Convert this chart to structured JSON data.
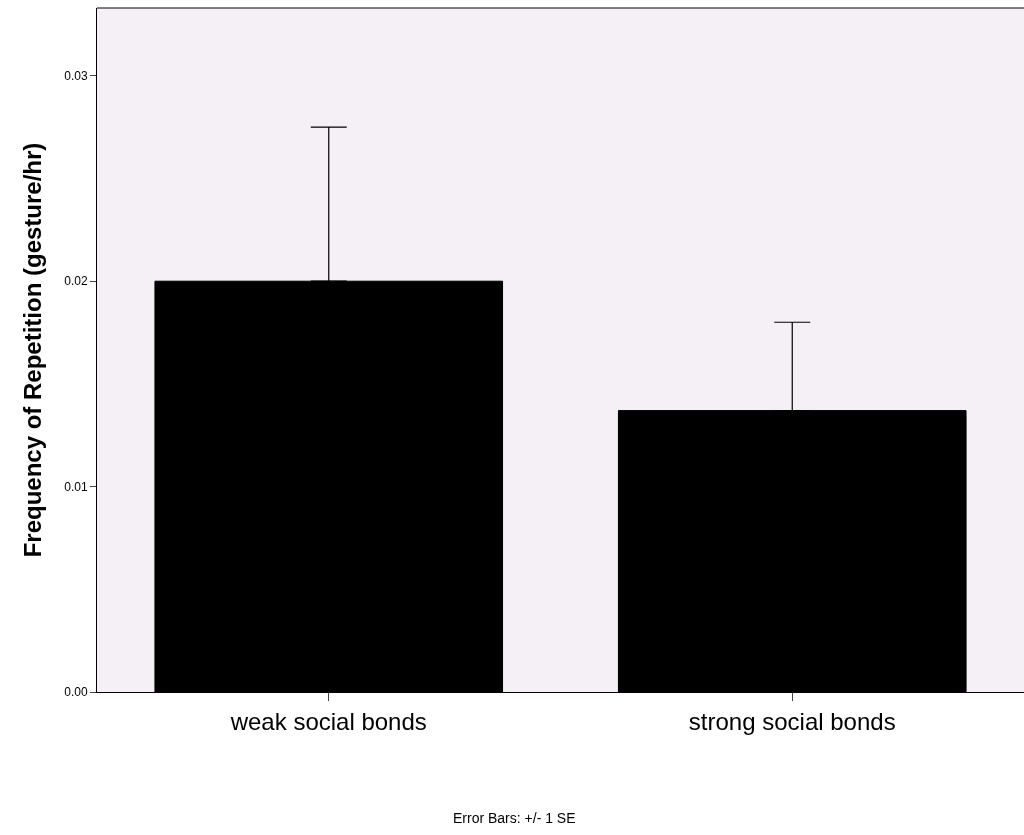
{
  "chart_data": {
    "type": "bar",
    "ylabel": "Frequency of Repetition (gesture/hr)",
    "categories": [
      "weak social bonds",
      "strong social bonds"
    ],
    "values": [
      0.02,
      0.0137
    ],
    "errors": [
      [
        0.02,
        0.0275
      ],
      [
        0.0137,
        0.018
      ]
    ],
    "color": "#000000",
    "ylim": [
      0,
      0.0333
    ],
    "yticks": [
      {
        "value": 0,
        "label": "0.00"
      },
      {
        "value": 0.01,
        "label": "0.01"
      },
      {
        "value": 0.02,
        "label": "0.02"
      },
      {
        "value": 0.03,
        "label": "0.03"
      }
    ],
    "annotations": [
      "Error Bars: +/- 1 SE"
    ],
    "grid": false
  }
}
